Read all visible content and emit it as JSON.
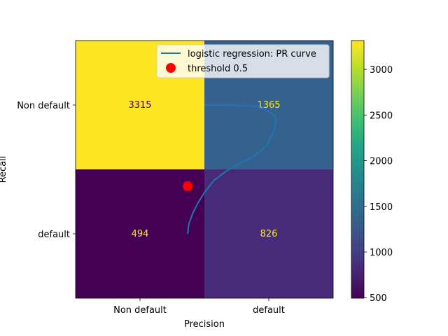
{
  "chart_data": {
    "type": "heatmap",
    "xlabel": "Precision",
    "ylabel": "Recall",
    "x_categories": [
      "Non default",
      "default"
    ],
    "y_categories": [
      "Non default",
      "default"
    ],
    "matrix": [
      [
        3315,
        1365
      ],
      [
        494,
        826
      ]
    ],
    "colormap": "viridis",
    "colorbar": {
      "range": [
        494,
        3315
      ],
      "ticks": [
        500,
        1000,
        1500,
        2000,
        2500,
        3000
      ]
    },
    "overlay": {
      "type": "line",
      "axes": "fraction",
      "series": [
        {
          "name": "logistic regression: PR curve",
          "color": "#1f77b4",
          "x": [
            0.5,
            0.59,
            0.7,
            0.74,
            0.77,
            0.78,
            0.77,
            0.74,
            0.69,
            0.63,
            0.58,
            0.535,
            0.5,
            0.475,
            0.455,
            0.44,
            0.435
          ],
          "y": [
            0.75,
            0.75,
            0.745,
            0.73,
            0.71,
            0.695,
            0.65,
            0.59,
            0.55,
            0.52,
            0.49,
            0.455,
            0.41,
            0.37,
            0.33,
            0.29,
            0.25
          ]
        }
      ],
      "marker": {
        "name": "threshold 0.5",
        "color": "#ff0000",
        "x": 0.435,
        "y": 0.435
      }
    },
    "legend": {
      "placement": "upper-right"
    },
    "grid": false
  },
  "colors": {
    "text_on_dark": "#fde725",
    "text_on_light": "#440154"
  }
}
